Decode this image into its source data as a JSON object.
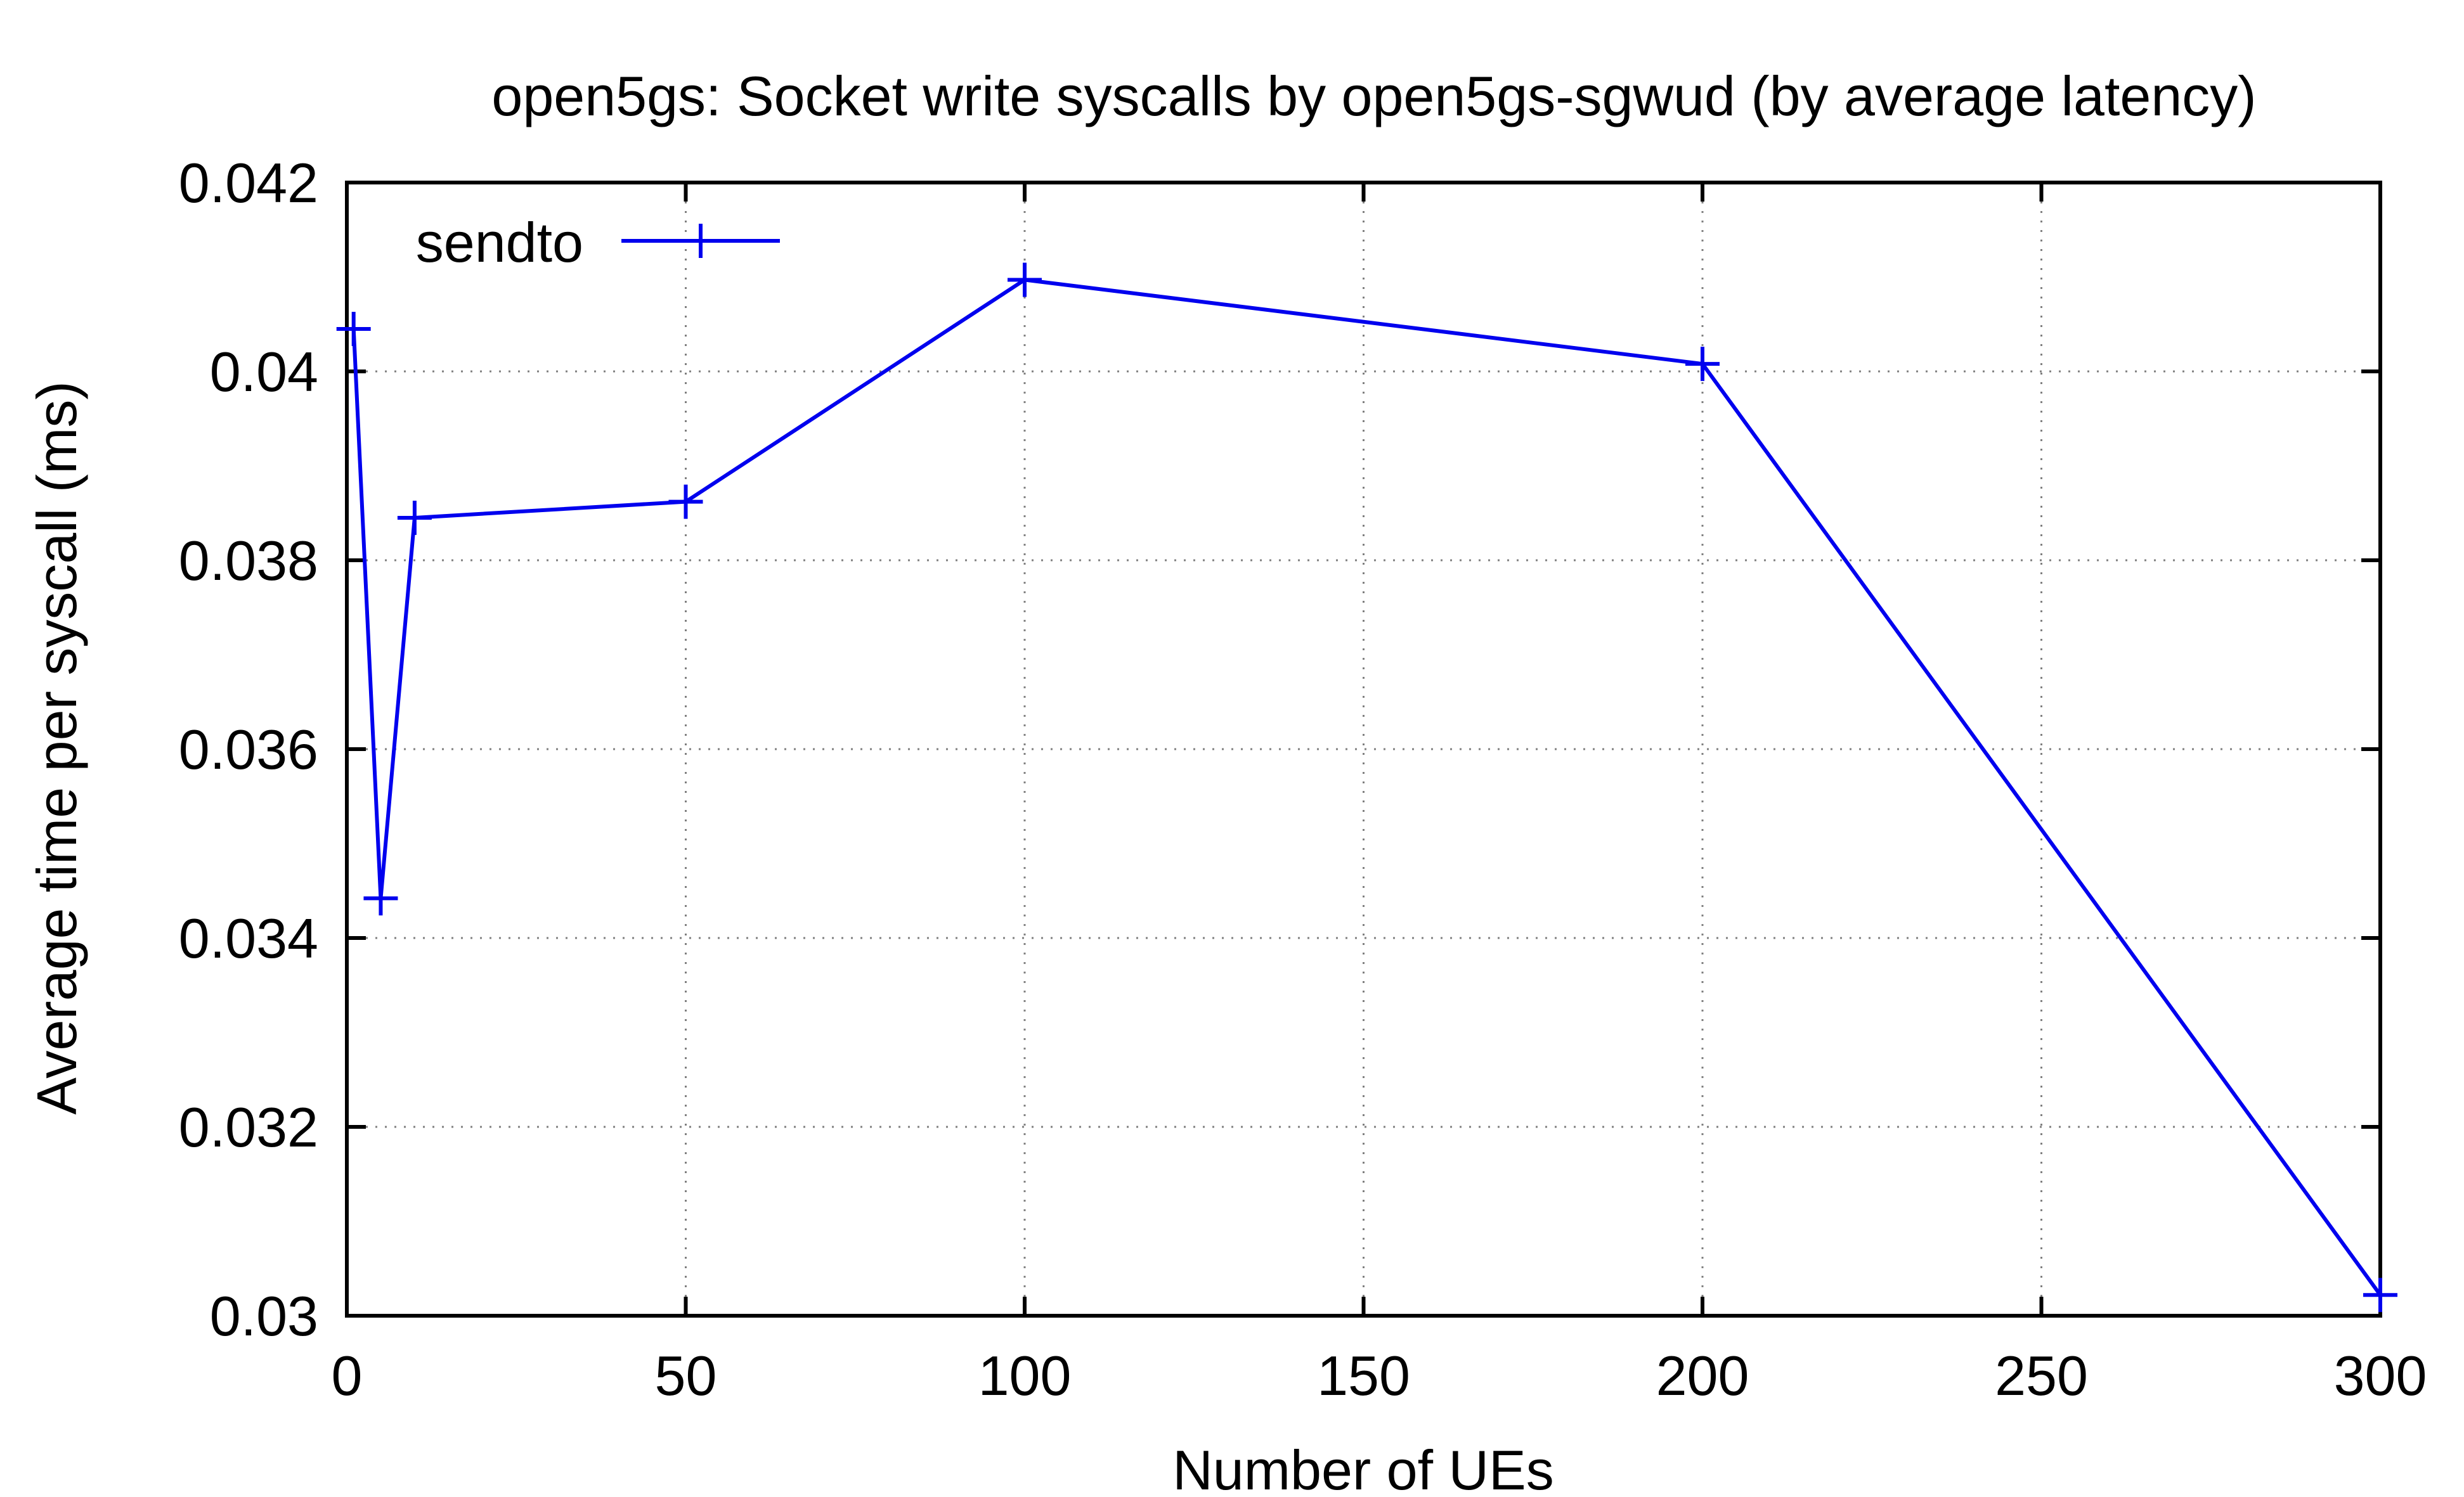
{
  "chart_data": {
    "type": "line",
    "title": "open5gs: Socket write syscalls by open5gs-sgwud (by average latency)",
    "xlabel": "Number of UEs",
    "ylabel": "Average time per syscall (ms)",
    "xlim": [
      0,
      300
    ],
    "ylim": [
      0.03,
      0.042
    ],
    "x_ticks": [
      "0",
      "50",
      "100",
      "150",
      "200",
      "250",
      "300"
    ],
    "x_tick_values": [
      0,
      50,
      100,
      150,
      200,
      250,
      300
    ],
    "y_ticks": [
      "0.03",
      "0.032",
      "0.034",
      "0.036",
      "0.038",
      "0.04",
      "0.042"
    ],
    "y_tick_values": [
      0.03,
      0.032,
      0.034,
      0.036,
      0.038,
      0.04,
      0.042
    ],
    "grid": true,
    "legend_position": "top-left",
    "series": [
      {
        "name": "sendto",
        "color": "#0000ee",
        "marker": "plus",
        "x": [
          1,
          5,
          10,
          50,
          100,
          200,
          300
        ],
        "y": [
          0.04045,
          0.03442,
          0.03845,
          0.03862,
          0.04097,
          0.04008,
          0.03022
        ]
      }
    ]
  }
}
